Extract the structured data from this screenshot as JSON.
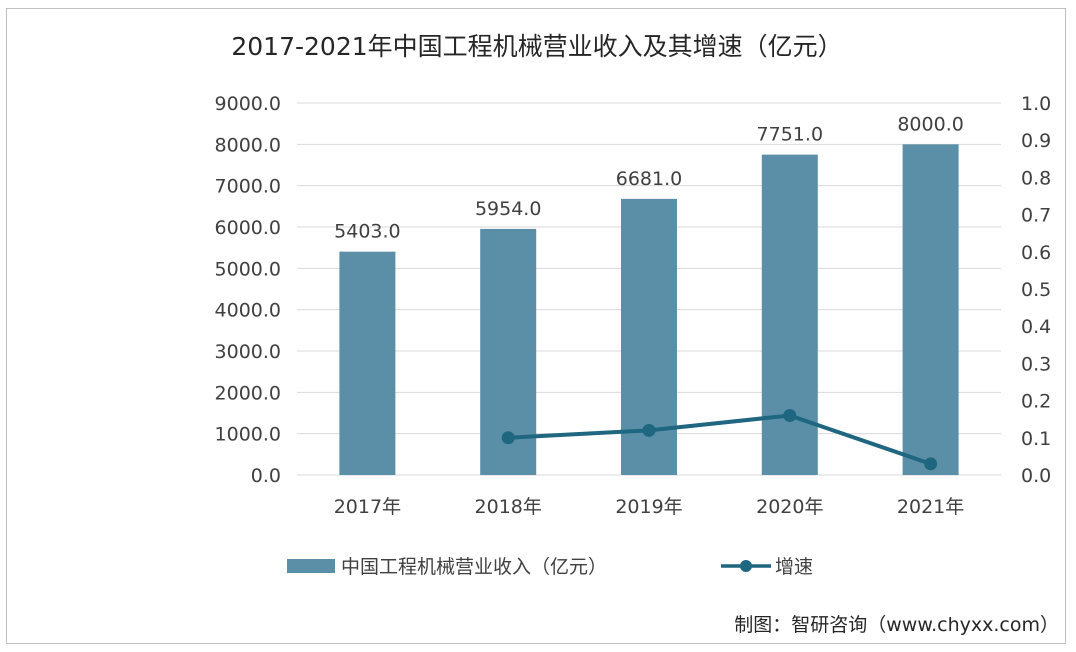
{
  "chart_data": {
    "type": "bar",
    "title": "2017-2021年中国工程机械营业收入及其增速（亿元）",
    "categories": [
      "2017年",
      "2018年",
      "2019年",
      "2020年",
      "2021年"
    ],
    "series": [
      {
        "name": "中国工程机械营业收入（亿元）",
        "type": "bar",
        "axis": "left",
        "color": "#5b8fa8",
        "values": [
          5403.0,
          5954.0,
          6681.0,
          7751.0,
          8000.0
        ],
        "labels": [
          "5403.0",
          "5954.0",
          "6681.0",
          "7751.0",
          "8000.0"
        ]
      },
      {
        "name": "增速",
        "type": "line",
        "axis": "right",
        "color": "#1f6680",
        "values": [
          null,
          0.1,
          0.12,
          0.16,
          0.03
        ]
      }
    ],
    "y_left": {
      "range": [
        0,
        9000
      ],
      "ticks": [
        "0.0",
        "1000.0",
        "2000.0",
        "3000.0",
        "4000.0",
        "5000.0",
        "6000.0",
        "7000.0",
        "8000.0",
        "9000.0"
      ]
    },
    "y_right": {
      "range": [
        0,
        1.0
      ],
      "ticks": [
        "0.0",
        "0.1",
        "0.2",
        "0.3",
        "0.4",
        "0.5",
        "0.6",
        "0.7",
        "0.8",
        "0.9",
        "1.0"
      ]
    },
    "grid": true,
    "legend_position": "bottom"
  },
  "credit": "制图：智研咨询（www.chyxx.com）"
}
